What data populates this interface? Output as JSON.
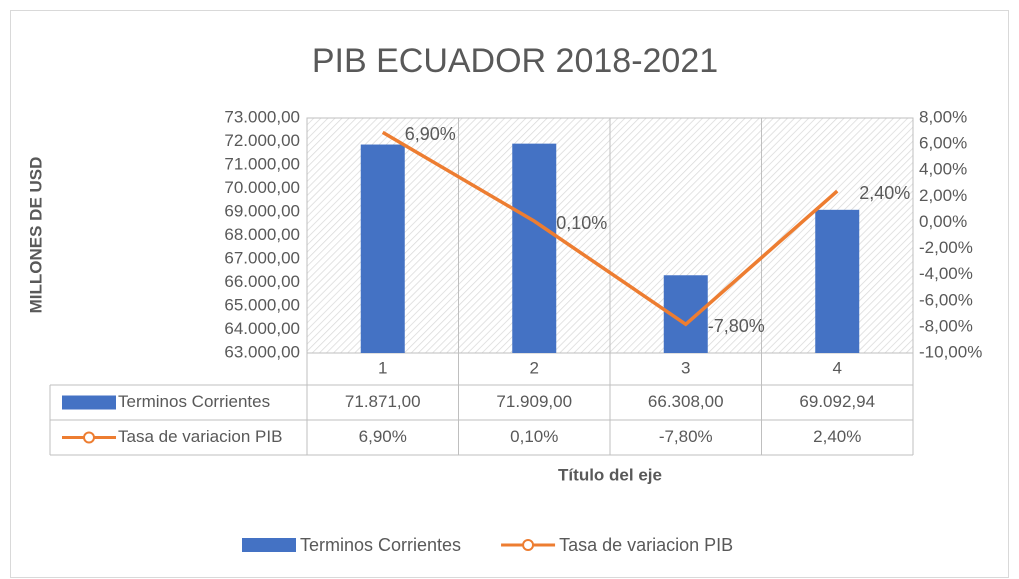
{
  "chart_data": {
    "type": "bar_line",
    "title": "PIB ECUADOR 2018-2021",
    "y_label": "MILLONES DE USD",
    "x_label": "Título del eje",
    "categories": [
      "1",
      "2",
      "3",
      "4"
    ],
    "series": [
      {
        "name": "Terminos Corrientes",
        "color": "#4472c4",
        "type": "bar",
        "values": [
          71871,
          71909,
          66308,
          69092.94
        ],
        "value_labels": [
          "71.871,00",
          "71.909,00",
          "66.308,00",
          "69.092,94"
        ]
      },
      {
        "name": "Tasa de variacion PIB",
        "color": "#ed7d31",
        "type": "line",
        "axis": "y2",
        "values": [
          6.9,
          0.1,
          -7.8,
          2.4
        ],
        "value_labels": [
          "6,90%",
          "0,10%",
          "-7,80%",
          "2,40%"
        ]
      }
    ],
    "ylim": [
      63000,
      73000
    ],
    "yticks": [
      {
        "value": 63000,
        "label": "63.000,00"
      },
      {
        "value": 64000,
        "label": "64.000,00"
      },
      {
        "value": 65000,
        "label": "65.000,00"
      },
      {
        "value": 66000,
        "label": "66.000,00"
      },
      {
        "value": 67000,
        "label": "67.000,00"
      },
      {
        "value": 68000,
        "label": "68.000,00"
      },
      {
        "value": 69000,
        "label": "69.000,00"
      },
      {
        "value": 70000,
        "label": "70.000,00"
      },
      {
        "value": 71000,
        "label": "71.000,00"
      },
      {
        "value": 72000,
        "label": "72.000,00"
      },
      {
        "value": 73000,
        "label": "73.000,00"
      }
    ],
    "y2lim": [
      -10,
      8
    ],
    "y2ticks": [
      {
        "value": -10,
        "label": "-10,00%"
      },
      {
        "value": -8,
        "label": "-8,00%"
      },
      {
        "value": -6,
        "label": "-6,00%"
      },
      {
        "value": -4,
        "label": "-4,00%"
      },
      {
        "value": -2,
        "label": "-2,00%"
      },
      {
        "value": 0,
        "label": "0,00%"
      },
      {
        "value": 2,
        "label": "2,00%"
      },
      {
        "value": 4,
        "label": "4,00%"
      },
      {
        "value": 6,
        "label": "6,00%"
      },
      {
        "value": 8,
        "label": "8,00%"
      }
    ],
    "legend": "bottom",
    "data_table": true
  }
}
